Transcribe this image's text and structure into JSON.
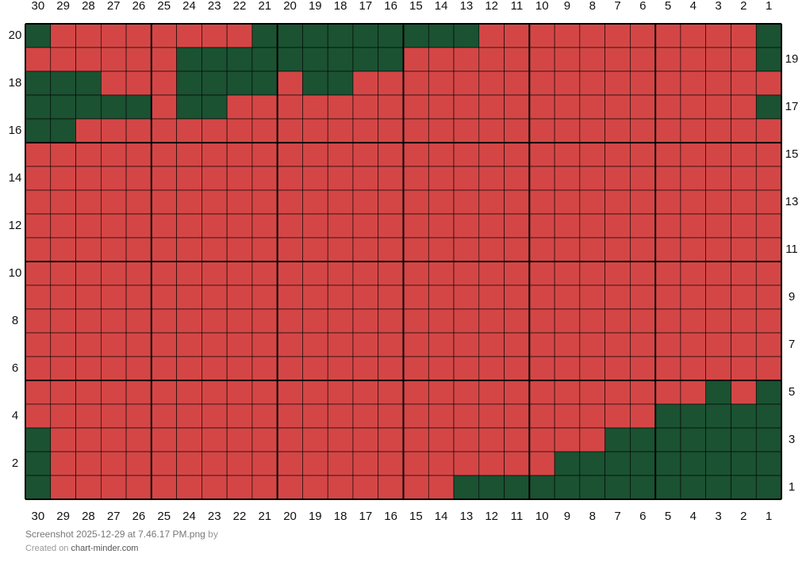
{
  "grid": {
    "columns": [
      30,
      29,
      28,
      27,
      26,
      25,
      24,
      23,
      22,
      21,
      20,
      19,
      18,
      17,
      16,
      15,
      14,
      13,
      12,
      11,
      10,
      9,
      8,
      7,
      6,
      5,
      4,
      3,
      2,
      1
    ],
    "left_row_labels": [
      20,
      18,
      16,
      14,
      12,
      10,
      8,
      6,
      4,
      2
    ],
    "right_row_labels": [
      19,
      17,
      15,
      13,
      11,
      9,
      7,
      5,
      3,
      1
    ],
    "palette": {
      "G": "#1b5232",
      "R": "#d44646"
    },
    "rows": [
      "GRRRRRRRRGGGGGGGGGRRRRRRRRRRRG",
      "RRRRRRGGGGGGGGGRRRRRRRRRRRRRRG",
      "GGGRRRGGGGRGGRRRRRRRRRRRRRRRRR",
      "GGGGGRGGRRRRRRRRRRRRRRRRRRRRRG",
      "GGRRRRRRRRRRRRRRRRRRRRRRRRRRRR",
      "RRRRRRRRRRRRRRRRRRRRRRRRRRRRRR",
      "RRRRRRRRRRRRRRRRRRRRRRRRRRRRRR",
      "RRRRRRRRRRRRRRRRRRRRRRRRRRRRRR",
      "RRRRRRRRRRRRRRRRRRRRRRRRRRRRRR",
      "RRRRRRRRRRRRRRRRRRRRRRRRRRRRRR",
      "RRRRRRRRRRRRRRRRRRRRRRRRRRRRRR",
      "RRRRRRRRRRRRRRRRRRRRRRRRRRRRRR",
      "RRRRRRRRRRRRRRRRRRRRRRRRRRRRRR",
      "RRRRRRRRRRRRRRRRRRRRRRRRRRRRRR",
      "RRRRRRRRRRRRRRRRRRRRRRRRRRRRRR",
      "RRRRRRRRRRRRRRRRRRRRRRRRRRRGRG",
      "RRRRRRRRRRRRRRRRRRRRRRRRRGGGGG",
      "GRRRRRRRRRRRRRRRRRRRRRRGGGGGGG",
      "GRRRRRRRRRRRRRRRRRRRRGGGGGGGGG",
      "GRRRRRRRRRRRRRRRRGGGGGGGGGGGGG"
    ]
  },
  "footer": {
    "filename": "Screenshot 2025-12-29 at 7.46.17 PM.png",
    "by": "by",
    "created_on": "Created on",
    "site": "chart-minder.com"
  }
}
